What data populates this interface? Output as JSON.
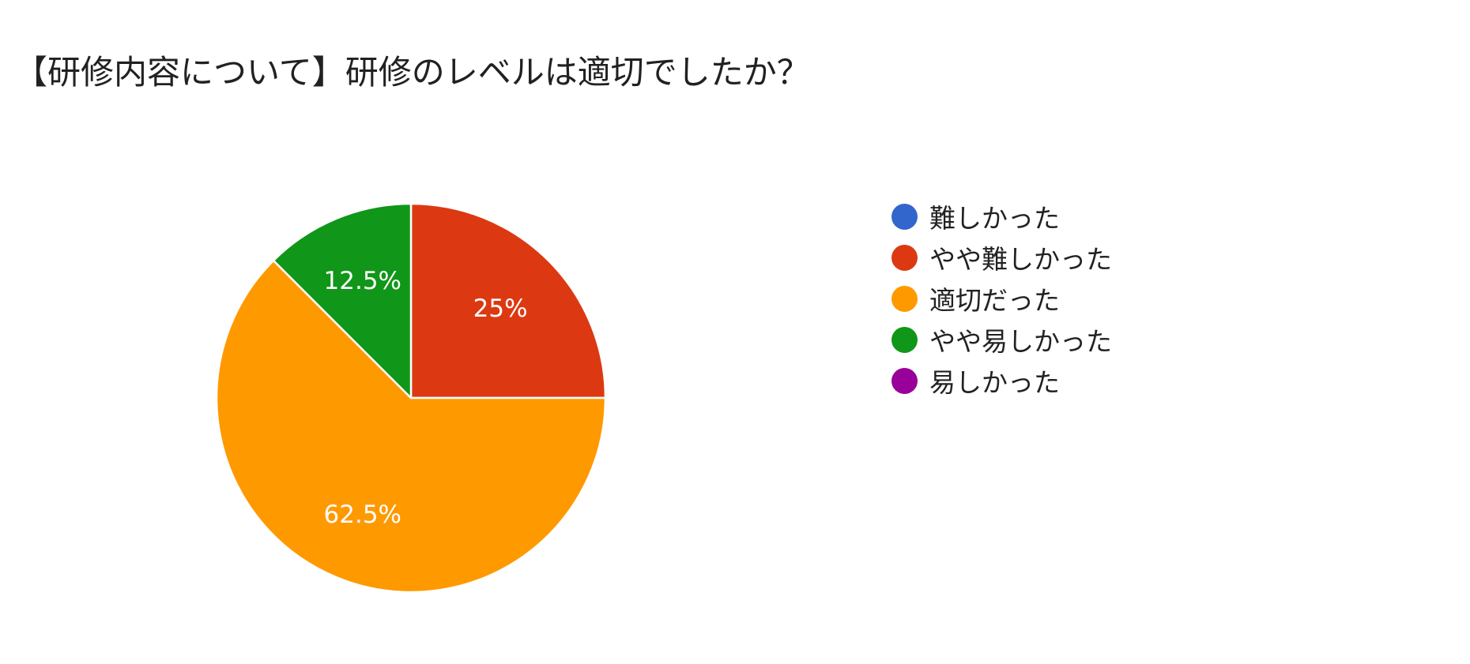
{
  "chart_data": {
    "type": "pie",
    "title": "【研修内容について】研修のレベルは適切でしたか？",
    "legend_position": "right",
    "slices": [
      {
        "label": "難しかった",
        "value": 0,
        "value_label": "",
        "color": "#3366cc"
      },
      {
        "label": "やや難しかった",
        "value": 25,
        "value_label": "25%",
        "color": "#dc3912"
      },
      {
        "label": "適切だった",
        "value": 62.5,
        "value_label": "62.5%",
        "color": "#ff9900"
      },
      {
        "label": "やや易しかった",
        "value": 12.5,
        "value_label": "12.5%",
        "color": "#109618"
      },
      {
        "label": "易しかった",
        "value": 0,
        "value_label": "",
        "color": "#990099"
      }
    ]
  }
}
